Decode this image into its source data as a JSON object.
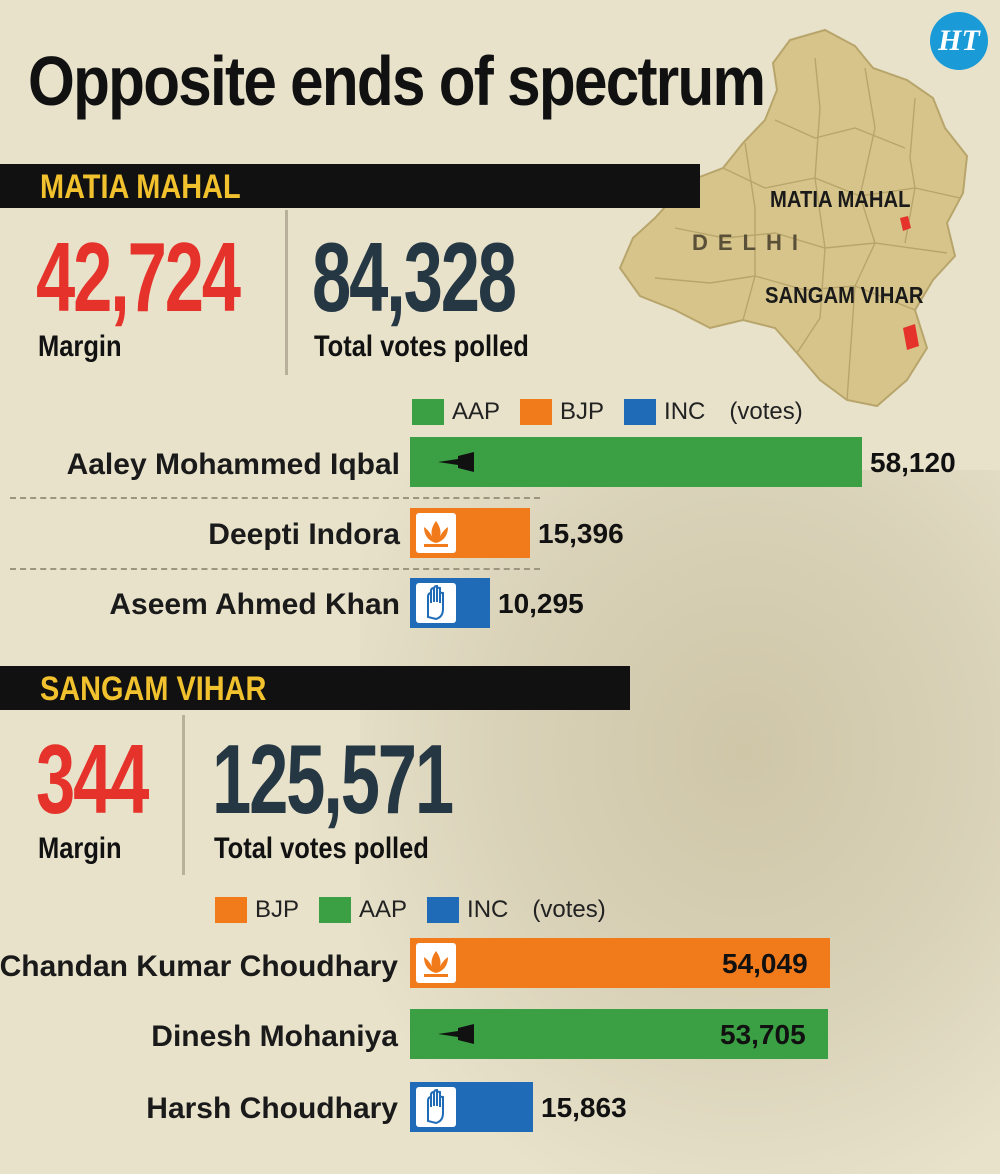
{
  "title": "Opposite ends of spectrum",
  "logo_text": "HT",
  "map": {
    "region_label": "DELHI",
    "labels": [
      "MATIA MAHAL",
      "SANGAM VIHAR"
    ],
    "fill_color": "#d6c48a",
    "highlight_color": "#e5322a"
  },
  "colors": {
    "AAP": "#3aa043",
    "BJP": "#f17a1b",
    "INC": "#1f6bb8",
    "margin": "#e5322a",
    "total": "#263744"
  },
  "constituencies": [
    {
      "name": "MATIA MAHAL",
      "margin": "42,724",
      "margin_label": "Margin",
      "total": "84,328",
      "total_label": "Total votes polled",
      "legend": [
        "AAP",
        "BJP",
        "INC"
      ],
      "legend_unit": "(votes)",
      "candidates": [
        {
          "name": "Aaley Mohammed Iqbal",
          "party": "AAP",
          "party_symbol": "broom-icon",
          "votes": 58120,
          "votes_label": "58,120"
        },
        {
          "name": "Deepti Indora",
          "party": "BJP",
          "party_symbol": "lotus-icon",
          "votes": 15396,
          "votes_label": "15,396"
        },
        {
          "name": "Aseem Ahmed Khan",
          "party": "INC",
          "party_symbol": "hand-icon",
          "votes": 10295,
          "votes_label": "10,295"
        }
      ]
    },
    {
      "name": "SANGAM VIHAR",
      "margin": "344",
      "margin_label": "Margin",
      "total": "125,571",
      "total_label": "Total votes polled",
      "legend": [
        "BJP",
        "AAP",
        "INC"
      ],
      "legend_unit": "(votes)",
      "candidates": [
        {
          "name": "Chandan Kumar Choudhary",
          "party": "BJP",
          "party_symbol": "lotus-icon",
          "votes": 54049,
          "votes_label": "54,049"
        },
        {
          "name": "Dinesh Mohaniya",
          "party": "AAP",
          "party_symbol": "broom-icon",
          "votes": 53705,
          "votes_label": "53,705"
        },
        {
          "name": "Harsh Choudhary",
          "party": "INC",
          "party_symbol": "hand-icon",
          "votes": 15863,
          "votes_label": "15,863"
        }
      ]
    }
  ],
  "chart_data": [
    {
      "type": "bar",
      "orientation": "horizontal",
      "categories": [
        "Aaley Mohammed Iqbal",
        "Deepti Indora",
        "Aseem Ahmed Khan"
      ],
      "values": [
        58120,
        15396,
        10295
      ],
      "parties": [
        "AAP",
        "BJP",
        "INC"
      ],
      "title": "MATIA MAHAL",
      "unit": "(votes)",
      "legend": [
        "AAP",
        "BJP",
        "INC"
      ],
      "grid": false
    },
    {
      "type": "bar",
      "orientation": "horizontal",
      "categories": [
        "Chandan Kumar Choudhary",
        "Dinesh Mohaniya",
        "Harsh Choudhary"
      ],
      "values": [
        54049,
        53705,
        15863
      ],
      "parties": [
        "BJP",
        "AAP",
        "INC"
      ],
      "title": "SANGAM VIHAR",
      "unit": "(votes)",
      "legend": [
        "BJP",
        "AAP",
        "INC"
      ],
      "grid": false
    }
  ]
}
